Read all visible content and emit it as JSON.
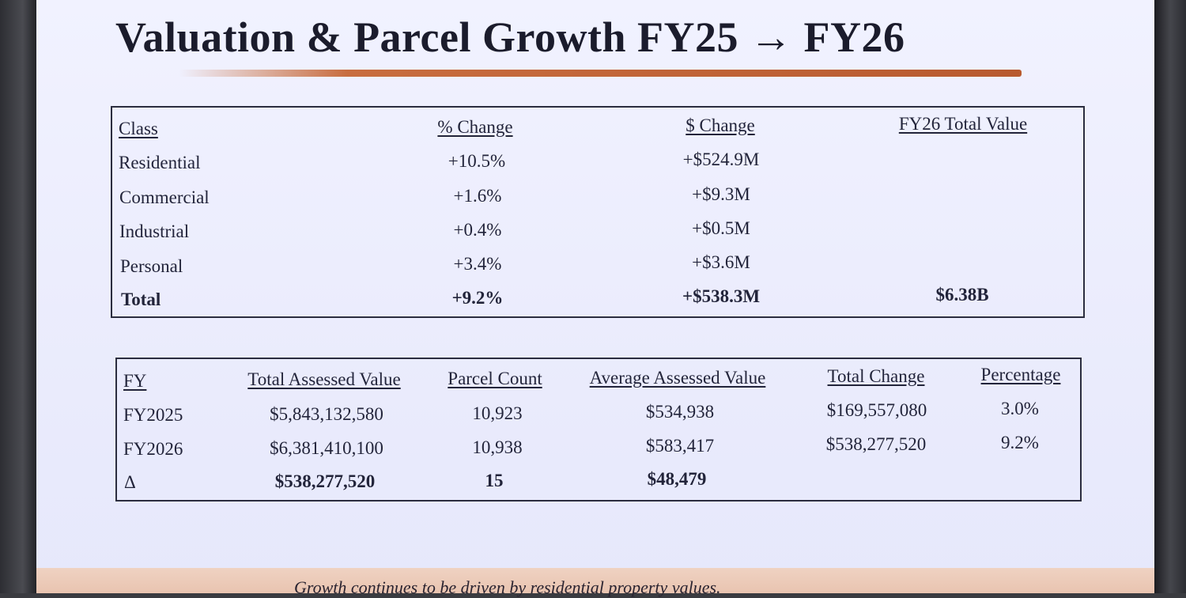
{
  "title": "Valuation & Parcel Growth FY25 → FY26",
  "class_table": {
    "headers": [
      "Class",
      "% Change",
      "$ Change",
      "FY26 Total Value"
    ],
    "rows": [
      {
        "class": "Residential",
        "pct": "+10.5%",
        "dollar": "+$524.9M",
        "total": ""
      },
      {
        "class": "Commercial",
        "pct": "+1.6%",
        "dollar": "+$9.3M",
        "total": ""
      },
      {
        "class": "Industrial",
        "pct": "+0.4%",
        "dollar": "+$0.5M",
        "total": ""
      },
      {
        "class": "Personal",
        "pct": "+3.4%",
        "dollar": "+$3.6M",
        "total": ""
      },
      {
        "class": "Total",
        "pct": "+9.2%",
        "dollar": "+$538.3M",
        "total": "$6.38B"
      }
    ]
  },
  "fy_table": {
    "headers": [
      "FY",
      "Total Assessed Value",
      "Parcel Count",
      "Average Assessed Value",
      "Total Change",
      "Percentage"
    ],
    "rows": [
      {
        "fy": "FY2025",
        "tav": "$5,843,132,580",
        "count": "10,923",
        "avg": "$534,938",
        "change": "$169,557,080",
        "pct": "3.0%"
      },
      {
        "fy": "FY2026",
        "tav": "$6,381,410,100",
        "count": "10,938",
        "avg": "$583,417",
        "change": "$538,277,520",
        "pct": "9.2%"
      },
      {
        "fy": "Δ",
        "tav": "$538,277,520",
        "count": "15",
        "avg": "$48,479",
        "change": "",
        "pct": ""
      }
    ]
  },
  "caption": "Growth continues to be driven by residential property values."
}
